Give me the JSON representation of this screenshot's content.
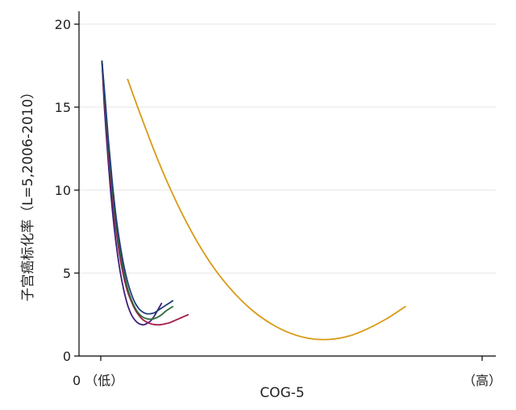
{
  "chart_data": {
    "type": "line",
    "title": "",
    "xlabel": "COG-5",
    "ylabel": "子宫癌标化率（L=5,2006-2010）",
    "xlim": [
      0,
      100
    ],
    "ylim": [
      0,
      20
    ],
    "y_ticks": [
      0,
      5,
      10,
      15,
      20
    ],
    "x_tick_labels": [
      {
        "value": 0,
        "label": "0 （低）"
      },
      {
        "value": 100,
        "label": "（高）"
      }
    ],
    "grid": true,
    "legend": "none",
    "series": [
      {
        "color": "#3b1f7a",
        "x": [
          0.3,
          1,
          2,
          3,
          4,
          5,
          6,
          7,
          8,
          9,
          10,
          11,
          11.5,
          12,
          13,
          14,
          15,
          16
        ],
        "y": [
          17.8,
          14.8,
          11.6,
          8.9,
          6.8,
          5.2,
          4.0,
          3.1,
          2.5,
          2.15,
          1.95,
          1.88,
          1.9,
          1.95,
          2.1,
          2.4,
          2.8,
          3.2
        ]
      },
      {
        "color": "#a01a4a",
        "x": [
          0.3,
          1,
          2,
          3,
          4,
          5,
          6,
          7,
          8,
          9,
          10,
          11,
          12,
          13,
          14,
          15,
          16,
          17,
          18,
          19,
          20,
          21,
          22,
          23
        ],
        "y": [
          17.8,
          15.3,
          12.2,
          9.7,
          7.6,
          6.0,
          4.8,
          3.9,
          3.3,
          2.8,
          2.45,
          2.2,
          2.05,
          1.95,
          1.9,
          1.88,
          1.9,
          1.95,
          2.0,
          2.1,
          2.2,
          2.3,
          2.4,
          2.5
        ]
      },
      {
        "color": "#2e6b3c",
        "x": [
          0.3,
          1,
          2,
          3,
          4,
          5,
          6,
          7,
          8,
          9,
          10,
          11,
          12,
          13,
          14,
          15,
          16,
          17,
          18,
          19
        ],
        "y": [
          17.8,
          15.6,
          12.6,
          10.1,
          8.0,
          6.4,
          5.1,
          4.1,
          3.4,
          2.9,
          2.55,
          2.35,
          2.25,
          2.22,
          2.25,
          2.35,
          2.5,
          2.7,
          2.85,
          3.0
        ]
      },
      {
        "color": "#1f3d7a",
        "x": [
          0.3,
          1,
          2,
          3,
          4,
          5,
          6,
          7,
          8,
          9,
          10,
          11,
          12,
          13,
          14,
          15,
          16,
          17,
          18,
          19
        ],
        "y": [
          17.8,
          15.9,
          13.0,
          10.5,
          8.4,
          6.8,
          5.5,
          4.5,
          3.75,
          3.2,
          2.85,
          2.65,
          2.55,
          2.55,
          2.6,
          2.75,
          2.9,
          3.05,
          3.2,
          3.35
        ]
      },
      {
        "color": "#d89a14",
        "x": [
          7,
          10,
          15,
          20,
          25,
          30,
          35,
          40,
          45,
          50,
          55,
          60,
          65,
          70,
          75,
          80
        ],
        "y": [
          16.7,
          14.8,
          11.8,
          9.2,
          7.0,
          5.2,
          3.8,
          2.7,
          1.9,
          1.35,
          1.05,
          1.0,
          1.2,
          1.65,
          2.25,
          3.0
        ]
      }
    ]
  }
}
